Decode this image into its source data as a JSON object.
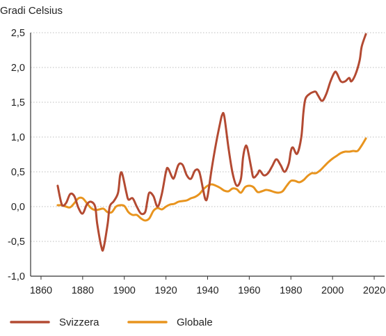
{
  "chart_data": {
    "type": "line",
    "title": "",
    "ylabel": "Gradi Celsius",
    "xlabel": "",
    "xlim": [
      1855,
      2025
    ],
    "ylim": [
      -1.0,
      2.5
    ],
    "x_ticks": [
      1860,
      1880,
      1900,
      1920,
      1940,
      1960,
      1980,
      2000,
      2020
    ],
    "x_tick_labels": [
      "1860",
      "1880",
      "1900",
      "1920",
      "1940",
      "1960",
      "1980",
      "2000",
      "2020"
    ],
    "y_ticks": [
      -1.0,
      -0.5,
      0.0,
      0.5,
      1.0,
      1.5,
      2.0,
      2.5
    ],
    "y_tick_labels": [
      "-1,0",
      "-0,5",
      "0,0",
      "0,5",
      "1,0",
      "1,5",
      "2,0",
      "2,5"
    ],
    "grid": "horizontal dotted",
    "legend_position": "bottom",
    "series": [
      {
        "name": "Svizzera",
        "color": "#b34a32",
        "points": [
          [
            1868,
            0.3
          ],
          [
            1870,
            0.03
          ],
          [
            1872,
            0.05
          ],
          [
            1874,
            0.18
          ],
          [
            1876,
            0.15
          ],
          [
            1878,
            -0.02
          ],
          [
            1880,
            -0.1
          ],
          [
            1882,
            0.03
          ],
          [
            1884,
            0.07
          ],
          [
            1886,
            0.0
          ],
          [
            1887,
            -0.25
          ],
          [
            1889,
            -0.58
          ],
          [
            1890,
            -0.6
          ],
          [
            1892,
            -0.25
          ],
          [
            1893,
            0.0
          ],
          [
            1895,
            0.08
          ],
          [
            1897,
            0.2
          ],
          [
            1898,
            0.45
          ],
          [
            1899,
            0.47
          ],
          [
            1901,
            0.2
          ],
          [
            1902,
            0.1
          ],
          [
            1904,
            0.12
          ],
          [
            1906,
            0.0
          ],
          [
            1908,
            -0.1
          ],
          [
            1910,
            -0.08
          ],
          [
            1911,
            0.07
          ],
          [
            1912,
            0.2
          ],
          [
            1914,
            0.15
          ],
          [
            1916,
            0.0
          ],
          [
            1918,
            0.18
          ],
          [
            1920,
            0.5
          ],
          [
            1921,
            0.55
          ],
          [
            1923,
            0.42
          ],
          [
            1924,
            0.42
          ],
          [
            1926,
            0.6
          ],
          [
            1928,
            0.6
          ],
          [
            1930,
            0.45
          ],
          [
            1932,
            0.4
          ],
          [
            1934,
            0.52
          ],
          [
            1936,
            0.5
          ],
          [
            1938,
            0.22
          ],
          [
            1939,
            0.1
          ],
          [
            1940,
            0.15
          ],
          [
            1942,
            0.55
          ],
          [
            1944,
            0.9
          ],
          [
            1946,
            1.2
          ],
          [
            1947,
            1.32
          ],
          [
            1948,
            1.3
          ],
          [
            1950,
            0.85
          ],
          [
            1952,
            0.48
          ],
          [
            1954,
            0.3
          ],
          [
            1956,
            0.4
          ],
          [
            1957,
            0.7
          ],
          [
            1958,
            0.85
          ],
          [
            1959,
            0.85
          ],
          [
            1961,
            0.55
          ],
          [
            1962,
            0.42
          ],
          [
            1964,
            0.47
          ],
          [
            1965,
            0.52
          ],
          [
            1967,
            0.45
          ],
          [
            1969,
            0.48
          ],
          [
            1971,
            0.58
          ],
          [
            1973,
            0.68
          ],
          [
            1975,
            0.6
          ],
          [
            1977,
            0.5
          ],
          [
            1979,
            0.62
          ],
          [
            1980,
            0.8
          ],
          [
            1981,
            0.85
          ],
          [
            1983,
            0.76
          ],
          [
            1985,
            1.0
          ],
          [
            1986,
            1.35
          ],
          [
            1987,
            1.55
          ],
          [
            1989,
            1.62
          ],
          [
            1991,
            1.65
          ],
          [
            1992,
            1.65
          ],
          [
            1993,
            1.6
          ],
          [
            1995,
            1.52
          ],
          [
            1997,
            1.62
          ],
          [
            1999,
            1.8
          ],
          [
            2001,
            1.93
          ],
          [
            2002,
            1.92
          ],
          [
            2004,
            1.8
          ],
          [
            2006,
            1.8
          ],
          [
            2008,
            1.85
          ],
          [
            2009,
            1.8
          ],
          [
            2011,
            1.9
          ],
          [
            2013,
            2.1
          ],
          [
            2014,
            2.3
          ],
          [
            2016,
            2.48
          ]
        ]
      },
      {
        "name": "Globale",
        "color": "#e8941e",
        "points": [
          [
            1868,
            0.02
          ],
          [
            1870,
            0.02
          ],
          [
            1872,
            0.0
          ],
          [
            1874,
            -0.01
          ],
          [
            1876,
            0.05
          ],
          [
            1878,
            0.12
          ],
          [
            1880,
            0.12
          ],
          [
            1882,
            0.05
          ],
          [
            1884,
            -0.02
          ],
          [
            1886,
            -0.05
          ],
          [
            1888,
            -0.04
          ],
          [
            1890,
            -0.03
          ],
          [
            1892,
            -0.08
          ],
          [
            1894,
            -0.08
          ],
          [
            1896,
            0.0
          ],
          [
            1898,
            0.02
          ],
          [
            1900,
            0.01
          ],
          [
            1902,
            -0.08
          ],
          [
            1904,
            -0.12
          ],
          [
            1906,
            -0.12
          ],
          [
            1908,
            -0.17
          ],
          [
            1910,
            -0.2
          ],
          [
            1912,
            -0.17
          ],
          [
            1914,
            -0.06
          ],
          [
            1916,
            -0.02
          ],
          [
            1918,
            -0.04
          ],
          [
            1920,
            0.0
          ],
          [
            1922,
            0.03
          ],
          [
            1924,
            0.04
          ],
          [
            1926,
            0.07
          ],
          [
            1928,
            0.08
          ],
          [
            1930,
            0.09
          ],
          [
            1932,
            0.12
          ],
          [
            1934,
            0.14
          ],
          [
            1936,
            0.18
          ],
          [
            1938,
            0.25
          ],
          [
            1940,
            0.3
          ],
          [
            1942,
            0.32
          ],
          [
            1944,
            0.3
          ],
          [
            1946,
            0.27
          ],
          [
            1948,
            0.23
          ],
          [
            1950,
            0.22
          ],
          [
            1952,
            0.26
          ],
          [
            1954,
            0.25
          ],
          [
            1956,
            0.2
          ],
          [
            1958,
            0.28
          ],
          [
            1960,
            0.3
          ],
          [
            1962,
            0.28
          ],
          [
            1964,
            0.21
          ],
          [
            1966,
            0.22
          ],
          [
            1968,
            0.24
          ],
          [
            1970,
            0.23
          ],
          [
            1972,
            0.21
          ],
          [
            1974,
            0.2
          ],
          [
            1976,
            0.22
          ],
          [
            1978,
            0.3
          ],
          [
            1980,
            0.37
          ],
          [
            1982,
            0.37
          ],
          [
            1984,
            0.35
          ],
          [
            1986,
            0.38
          ],
          [
            1988,
            0.44
          ],
          [
            1990,
            0.48
          ],
          [
            1992,
            0.48
          ],
          [
            1994,
            0.52
          ],
          [
            1996,
            0.58
          ],
          [
            1998,
            0.64
          ],
          [
            2000,
            0.69
          ],
          [
            2002,
            0.73
          ],
          [
            2004,
            0.77
          ],
          [
            2006,
            0.79
          ],
          [
            2008,
            0.79
          ],
          [
            2010,
            0.8
          ],
          [
            2012,
            0.8
          ],
          [
            2014,
            0.88
          ],
          [
            2016,
            0.98
          ]
        ]
      }
    ]
  },
  "legend": {
    "items": [
      {
        "label": "Svizzera",
        "color": "#b34a32"
      },
      {
        "label": "Globale",
        "color": "#e8941e"
      }
    ]
  }
}
